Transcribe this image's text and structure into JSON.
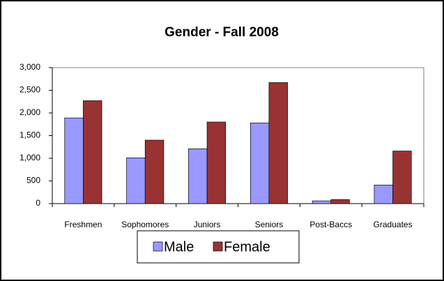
{
  "chart_data": {
    "type": "bar",
    "title": "Gender - Fall 2008",
    "categories": [
      "Freshmen",
      "Sophomores",
      "Juniors",
      "Seniors",
      "Post-Baccs",
      "Graduates"
    ],
    "series": [
      {
        "name": "Male",
        "color": "#9999ff",
        "values": [
          1890,
          1010,
          1210,
          1780,
          60,
          410
        ]
      },
      {
        "name": "Female",
        "color": "#993333",
        "values": [
          2270,
          1400,
          1800,
          2670,
          90,
          1160
        ]
      }
    ],
    "ylim": [
      0,
      3000
    ],
    "yticks": [
      0,
      500,
      {
        "value": 1000,
        "label": "1,000"
      },
      {
        "value": 1500,
        "label": "1,500"
      },
      {
        "value": 2000,
        "label": "2,000"
      },
      {
        "value": 2500,
        "label": "2,500"
      },
      {
        "value": 3000,
        "label": "3,000"
      }
    ],
    "grid": false,
    "legend": "bottom"
  }
}
